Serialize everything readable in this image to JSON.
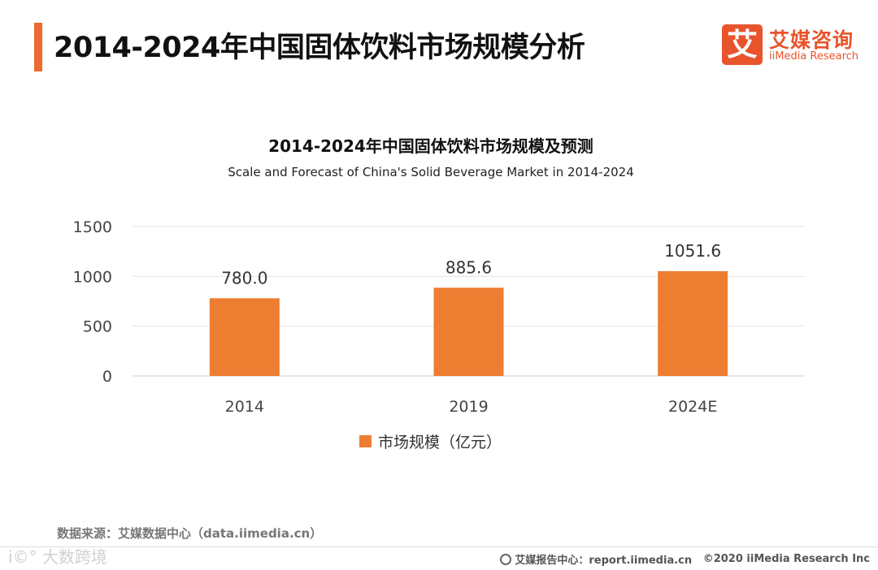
{
  "header": {
    "title": "2014-2024年中国固体饮料市场规模分析"
  },
  "logo": {
    "mark": "艾",
    "cn": "艾媒咨询",
    "en": "iiMedia Research"
  },
  "chart_data": {
    "type": "bar",
    "title": "2014-2024年中国固体饮料市场规模及预测",
    "subtitle": "Scale and Forecast of China's Solid Beverage Market in 2014-2024",
    "categories": [
      "2014",
      "2019",
      "2024E"
    ],
    "series": [
      {
        "name": "市场规模（亿元）",
        "values": [
          780.0,
          885.6,
          1051.6
        ],
        "color": "#ed7d31"
      }
    ],
    "data_labels": [
      "780.0",
      "885.6",
      "1051.6"
    ],
    "yticks": [
      0,
      500,
      1000,
      1500
    ],
    "ylim": [
      0,
      1500
    ],
    "xlabel": "",
    "ylabel": "",
    "grid": true,
    "legend_position": "bottom"
  },
  "source": {
    "text": "数据来源：艾媒数据中心（data.iimedia.cn）"
  },
  "watermark": {
    "text": "i©° 大数跨境"
  },
  "footer": {
    "center": "艾媒报告中心：report.iimedia.cn",
    "copyright": "©2020  iiMedia Research  Inc"
  },
  "colors": {
    "accent": "#ee6a2e",
    "bar": "#ed7d31",
    "brand": "#e8542c"
  }
}
